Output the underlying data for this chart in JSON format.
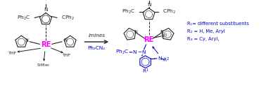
{
  "arrow_label_top": "imines",
  "arrow_label_bot": "Ph₂CN₂",
  "re_color": "#ff00ff",
  "blue_color": "#0000cc",
  "black_color": "#222222",
  "legend_lines": [
    "R₁= different substituents",
    "R₂ = H, Me, Aryl",
    "R₃ = Cy, Aryl,"
  ],
  "legend_color": "#0000cc",
  "figsize": [
    3.78,
    1.32
  ],
  "dpi": 100
}
